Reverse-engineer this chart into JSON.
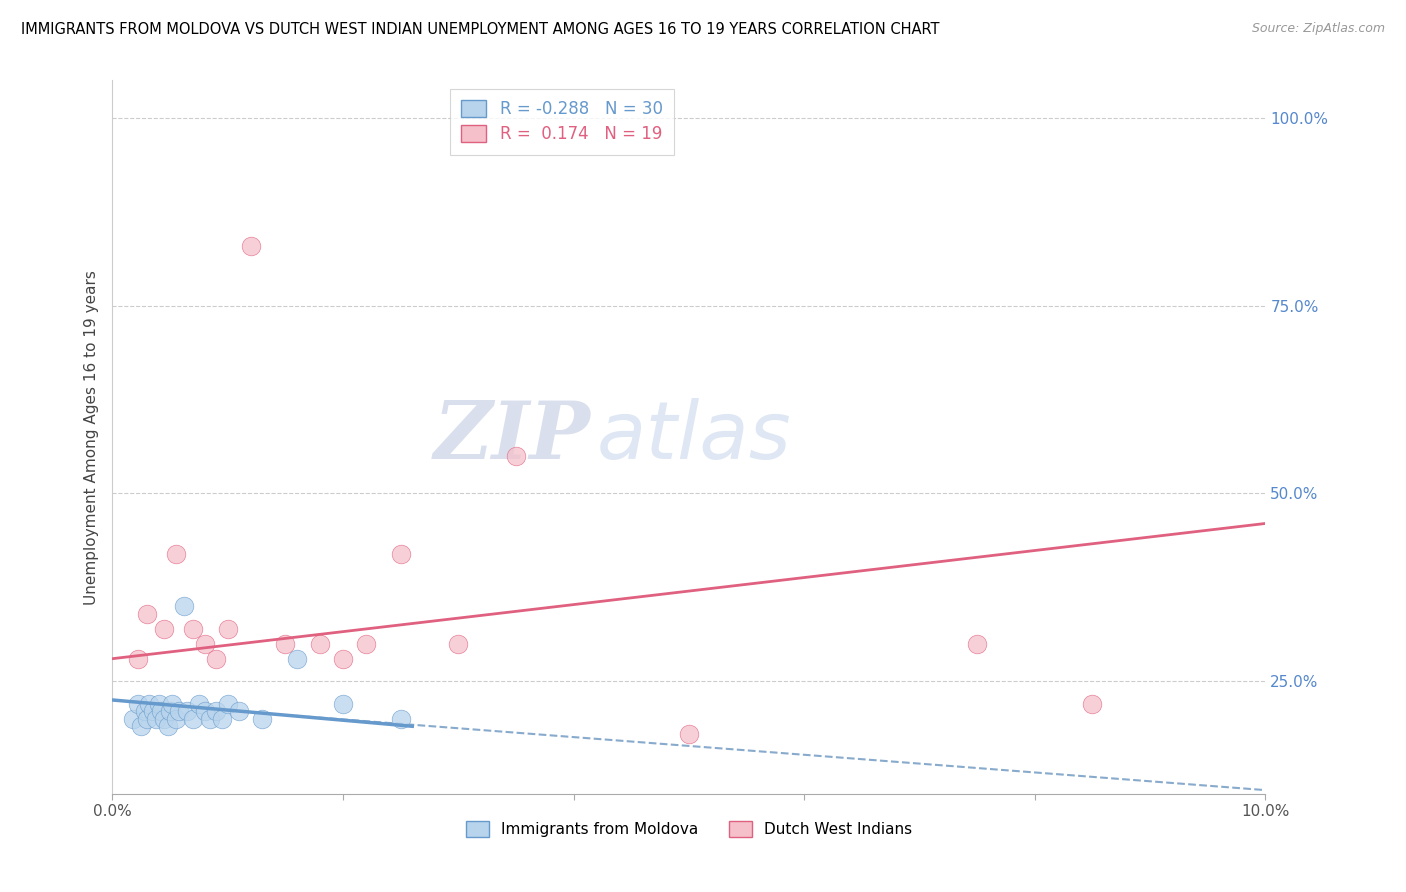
{
  "title": "IMMIGRANTS FROM MOLDOVA VS DUTCH WEST INDIAN UNEMPLOYMENT AMONG AGES 16 TO 19 YEARS CORRELATION CHART",
  "source": "Source: ZipAtlas.com",
  "ylabel": "Unemployment Among Ages 16 to 19 years",
  "xlim": [
    0.0,
    10.0
  ],
  "ylim": [
    10.0,
    105.0
  ],
  "legend_R1": "R = -0.288",
  "legend_N1": "N = 30",
  "legend_R2": "R =  0.174",
  "legend_N2": "N = 19",
  "blue_color": "#b8d4ec",
  "pink_color": "#f5c0ca",
  "blue_line_color": "#6699cc",
  "pink_line_color": "#e06080",
  "dashed_line_color": "#88aacc",
  "watermark_zip": "ZIP",
  "watermark_atlas": "atlas",
  "blue_scatter_x": [
    0.18,
    0.22,
    0.25,
    0.28,
    0.3,
    0.32,
    0.35,
    0.38,
    0.4,
    0.42,
    0.45,
    0.48,
    0.5,
    0.52,
    0.55,
    0.58,
    0.62,
    0.65,
    0.7,
    0.75,
    0.8,
    0.85,
    0.9,
    0.95,
    1.0,
    1.1,
    1.3,
    1.6,
    2.0,
    2.5
  ],
  "blue_scatter_y": [
    20,
    22,
    19,
    21,
    20,
    22,
    21,
    20,
    22,
    21,
    20,
    19,
    21,
    22,
    20,
    21,
    35,
    21,
    20,
    22,
    21,
    20,
    21,
    20,
    22,
    21,
    20,
    28,
    22,
    20
  ],
  "pink_scatter_x": [
    0.22,
    0.3,
    0.45,
    0.55,
    0.7,
    0.8,
    0.9,
    1.0,
    1.2,
    1.5,
    1.8,
    2.0,
    2.2,
    2.5,
    3.0,
    3.5,
    5.0,
    7.5,
    8.5
  ],
  "pink_scatter_y": [
    28,
    34,
    32,
    42,
    32,
    30,
    28,
    32,
    83,
    30,
    30,
    28,
    30,
    42,
    30,
    55,
    18,
    30,
    22
  ],
  "blue_trend_x": [
    0.0,
    2.6
  ],
  "blue_trend_y": [
    22.5,
    19.0
  ],
  "pink_trend_x": [
    0.0,
    10.0
  ],
  "pink_trend_y": [
    28.0,
    46.0
  ],
  "dashed_trend_x": [
    1.5,
    10.0
  ],
  "dashed_trend_y": [
    20.5,
    10.5
  ],
  "ytick_positions": [
    25.0,
    50.0,
    75.0,
    100.0
  ],
  "ytick_labels": [
    "25.0%",
    "50.0%",
    "75.0%",
    "100.0%"
  ],
  "xtick_positions": [
    0.0,
    2.0,
    4.0,
    6.0,
    8.0,
    10.0
  ],
  "xtick_labels": [
    "0.0%",
    "",
    "",
    "",
    "",
    "10.0%"
  ]
}
